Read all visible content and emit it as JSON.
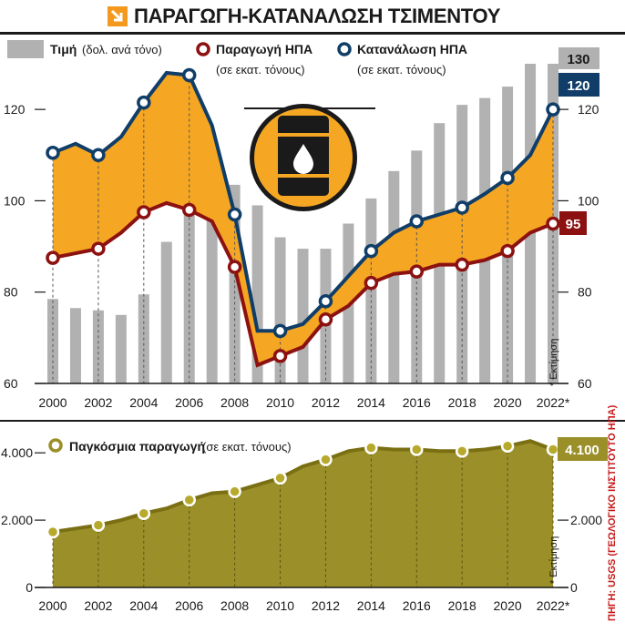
{
  "title": "ΠΑΡΑΓΩΓΗ-ΚΑΤΑΝΑΛΩΣΗ ΤΣΙΜΕΝΤΟΥ",
  "source": "ΠΗΓΗ: USGS (ΓΕΩΛΟΓΙΚΟ ΙΝΣΤΙΤΟΥΤΟ ΗΠΑ)",
  "estimate_note": "* Εκτίμηση",
  "colors": {
    "price_bar": "#b1b1b1",
    "production_us": "#8c1111",
    "consumption_us": "#103e68",
    "fill_between": "#f5a623",
    "world_fill": "#9a8f28",
    "world_line": "#7a6f12",
    "world_marker": "#b7a92c"
  },
  "chart_data": [
    {
      "type": "bar+line",
      "title": "ΠΑΡΑΓΩΓΗ-ΚΑΤΑΝΑΛΩΣΗ ΤΣΙΜΕΝΤΟΥ",
      "x": [
        2000,
        2001,
        2002,
        2003,
        2004,
        2005,
        2006,
        2007,
        2008,
        2009,
        2010,
        2011,
        2012,
        2013,
        2014,
        2015,
        2016,
        2017,
        2018,
        2019,
        2020,
        2021,
        2022
      ],
      "x_tick_labels": [
        "2000",
        "2002",
        "2004",
        "2006",
        "2008",
        "2010",
        "2012",
        "2014",
        "2016",
        "2018",
        "2020",
        "2022*"
      ],
      "ylim": [
        60,
        130
      ],
      "yticks": [
        60,
        80,
        100,
        120
      ],
      "grid": false,
      "series": [
        {
          "name": "Τιμή",
          "unit": "(δολ. ανά τόνο)",
          "kind": "bar",
          "values": [
            78.5,
            76.5,
            76,
            75,
            79.5,
            91,
            101.5,
            104,
            103.5,
            99,
            92,
            89.5,
            89.5,
            95,
            100.5,
            106.5,
            111,
            117,
            121,
            122.5,
            125,
            130,
            130
          ]
        },
        {
          "name": "Παραγωγή ΗΠΑ",
          "unit": "(σε εκατ. τόνους)",
          "kind": "line",
          "marker_years": [
            2000,
            2002,
            2004,
            2006,
            2008,
            2010,
            2012,
            2014,
            2016,
            2018,
            2020,
            2022
          ],
          "values": [
            87.5,
            88.5,
            89.5,
            93,
            97.5,
            99.5,
            98,
            95.5,
            85.5,
            64,
            66,
            68,
            74,
            77,
            82,
            84,
            84.5,
            86,
            86,
            87,
            89,
            93,
            95
          ]
        },
        {
          "name": "Κατανάλωση ΗΠΑ",
          "unit": "(σε εκατ. τόνους)",
          "kind": "line",
          "marker_years": [
            2000,
            2002,
            2004,
            2006,
            2008,
            2010,
            2012,
            2014,
            2016,
            2018,
            2020,
            2022
          ],
          "values": [
            110.5,
            112.5,
            110,
            114,
            121.5,
            128,
            127.5,
            116.5,
            97,
            71.5,
            71.5,
            73,
            78,
            83.5,
            89,
            93,
            95.5,
            97,
            98.5,
            101.5,
            105,
            110,
            120
          ]
        }
      ],
      "badges": [
        {
          "label": "130",
          "series": "Τιμή",
          "color": "#b1b1b1"
        },
        {
          "label": "120",
          "series": "Κατανάλωση ΗΠΑ",
          "color": "#103e68"
        },
        {
          "label": "95",
          "series": "Παραγωγή ΗΠΑ",
          "color": "#8c1111"
        }
      ]
    },
    {
      "type": "area",
      "title": "Παγκόσμια παραγωγή",
      "unit": "(σε εκατ. τόνους)",
      "x": [
        2000,
        2001,
        2002,
        2003,
        2004,
        2005,
        2006,
        2007,
        2008,
        2009,
        2010,
        2011,
        2012,
        2013,
        2014,
        2015,
        2016,
        2017,
        2018,
        2019,
        2020,
        2021,
        2022
      ],
      "x_tick_labels": [
        "2000",
        "2002",
        "2004",
        "2006",
        "2008",
        "2010",
        "2012",
        "2014",
        "2016",
        "2018",
        "2020",
        "2022*"
      ],
      "values": [
        1650,
        1750,
        1850,
        2000,
        2200,
        2350,
        2600,
        2800,
        2850,
        3050,
        3250,
        3600,
        3800,
        4050,
        4150,
        4100,
        4100,
        4050,
        4050,
        4100,
        4200,
        4350,
        4100
      ],
      "marker_years": [
        2000,
        2002,
        2004,
        2006,
        2008,
        2010,
        2012,
        2014,
        2016,
        2018,
        2020,
        2022
      ],
      "ylim": [
        0,
        4600
      ],
      "yticks": [
        0,
        2000,
        4000
      ],
      "ytick_labels": [
        "0",
        "2.000",
        "4.000"
      ],
      "badge": "4.100"
    }
  ]
}
